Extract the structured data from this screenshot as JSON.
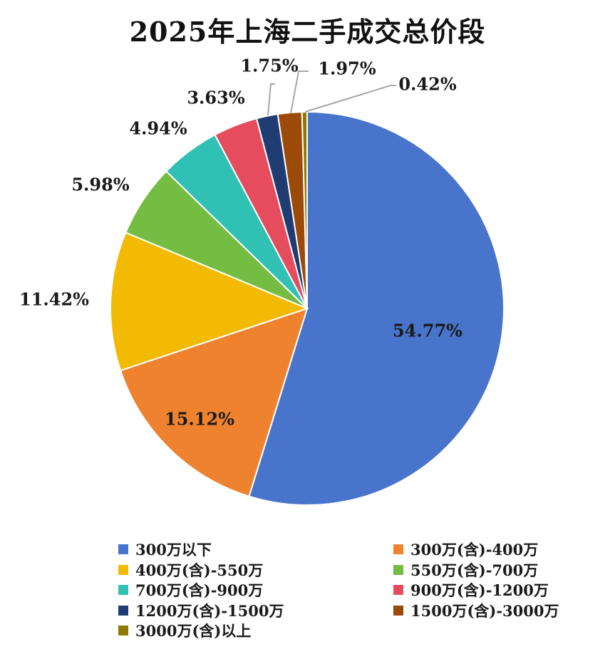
{
  "chart_data": {
    "type": "pie",
    "title": "2025年上海二手成交总价段",
    "unit": "%",
    "slices": [
      {
        "label": "300万以下",
        "value": 54.77,
        "value_label": "54.77%",
        "color": "#4874CB"
      },
      {
        "label": "300万(含)-400万",
        "value": 15.12,
        "value_label": "15.12%",
        "color": "#EE822F"
      },
      {
        "label": "400万(含)-550万",
        "value": 11.42,
        "value_label": "11.42%",
        "color": "#F2BA02"
      },
      {
        "label": "550万(含)-700万",
        "value": 5.98,
        "value_label": "5.98%",
        "color": "#75BD42"
      },
      {
        "label": "700万(含)-900万",
        "value": 4.94,
        "value_label": "4.94%",
        "color": "#30C0B4"
      },
      {
        "label": "900万(含)-1200万",
        "value": 3.63,
        "value_label": "3.63%",
        "color": "#E54C5E"
      },
      {
        "label": "1200万(含)-1500万",
        "value": 1.75,
        "value_label": "1.75%",
        "color": "#203D73"
      },
      {
        "label": "1500万(含)-3000万",
        "value": 1.97,
        "value_label": "1.97%",
        "color": "#9C4A0A"
      },
      {
        "label": "3000万(含)以上",
        "value": 0.42,
        "value_label": "0.42%",
        "color": "#8F7A00"
      }
    ],
    "start_angle_deg": 0,
    "direction": "clockwise",
    "legend_position": "bottom"
  }
}
